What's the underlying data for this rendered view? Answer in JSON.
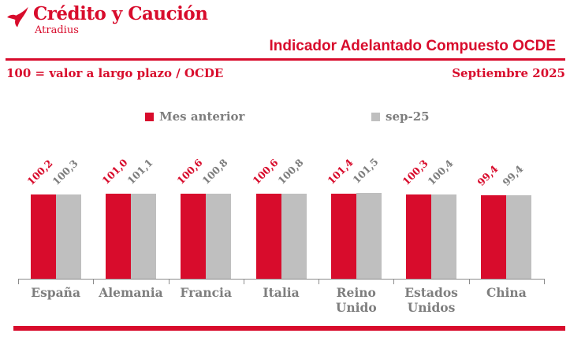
{
  "brand": {
    "name": "Crédito y Caución",
    "subname": "Atradius"
  },
  "header": {
    "title": "Indicador Adelantado Compuesto OCDE",
    "note_left": "100 = valor a largo plazo / OCDE",
    "note_right": "Septiembre 2025"
  },
  "colors": {
    "red": "#d80c2c",
    "gray_bar": "#bfbfbf",
    "gray_text": "#7e7e7e",
    "axis": "#8c8c8c"
  },
  "legend": [
    {
      "label": "Mes anterior",
      "color": "#d80c2c"
    },
    {
      "label": "sep-25",
      "color": "#bfbfbf"
    }
  ],
  "chart_data": {
    "type": "bar",
    "title": "Indicador Adelantado Compuesto OCDE",
    "subtitle": "100 = valor a largo plazo / OCDE",
    "period": "Septiembre 2025",
    "categories": [
      "España",
      "Alemania",
      "Francia",
      "Italia",
      "Reino Unido",
      "Estados Unidos",
      "China"
    ],
    "series": [
      {
        "name": "Mes anterior",
        "color": "#d80c2c",
        "values": [
          100.2,
          101.0,
          100.6,
          100.6,
          101.4,
          100.3,
          99.4
        ]
      },
      {
        "name": "sep-25",
        "color": "#bfbfbf",
        "values": [
          100.3,
          101.1,
          100.8,
          100.8,
          101.5,
          100.4,
          99.4
        ]
      }
    ],
    "value_labels": [
      [
        "100,2",
        "100,3"
      ],
      [
        "101,0",
        "101,1"
      ],
      [
        "100,6",
        "100,8"
      ],
      [
        "100,6",
        "100,8"
      ],
      [
        "101,4",
        "101,5"
      ],
      [
        "100,3",
        "100,4"
      ],
      [
        "99,4",
        "99,4"
      ]
    ],
    "ylabel": "",
    "xlabel": "",
    "baseline": 0,
    "grid": false,
    "legend_position": "top"
  }
}
